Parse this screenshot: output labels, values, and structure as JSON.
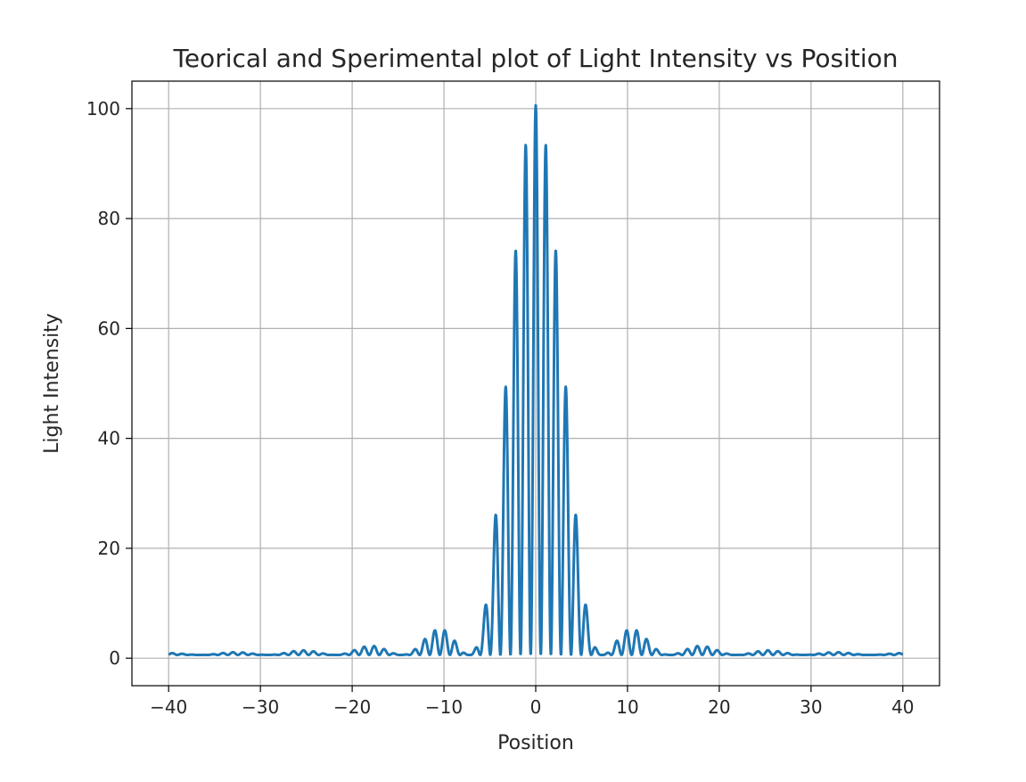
{
  "chart_data": {
    "type": "line",
    "title": "Teorical and Sperimental plot of Light Intensity vs Position",
    "xlabel": "Position",
    "ylabel": "Light Intensity",
    "xlim": [
      -44,
      44
    ],
    "ylim": [
      -5,
      105
    ],
    "xticks": [
      -40,
      -30,
      -20,
      -10,
      0,
      10,
      20,
      30,
      40
    ],
    "xtick_labels": [
      "−40",
      "−30",
      "−20",
      "−10",
      "0",
      "10",
      "20",
      "30",
      "40"
    ],
    "yticks": [
      0,
      20,
      40,
      60,
      80,
      100
    ],
    "ytick_labels": [
      "0",
      "20",
      "40",
      "60",
      "80",
      "100"
    ],
    "grid": true,
    "legend": "none",
    "model": {
      "x_range": [
        -40,
        40
      ],
      "fringe_spacing": 1.1,
      "envelope_zero_spacing": 7.3,
      "peak_value": 100,
      "baseline": 0.6
    },
    "series": [
      {
        "color": "#ff0000",
        "line_width": 1.5,
        "style": "solid"
      },
      {
        "color": "#1f77b4",
        "line_width": 3,
        "style": "solid"
      }
    ],
    "colors": {
      "axes": "#000000",
      "grid": "#b0b0b0",
      "text": "#262626"
    }
  }
}
